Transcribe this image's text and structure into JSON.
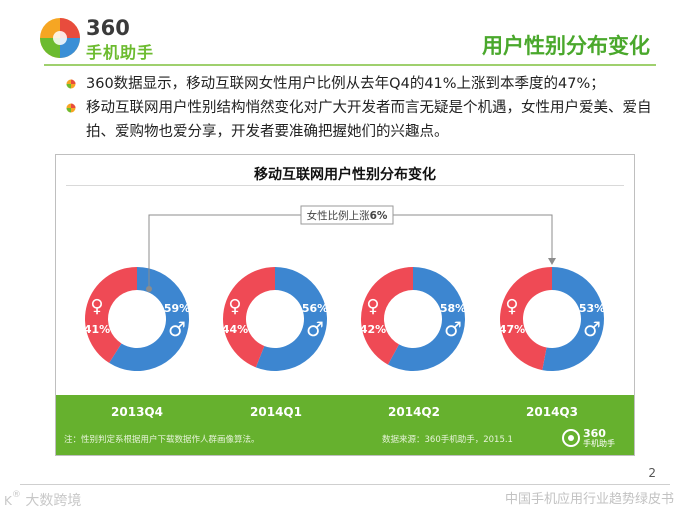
{
  "brand": {
    "number": "360",
    "name": "手机助手"
  },
  "page_title": "用户性别分布变化",
  "bullets": [
    "360数据显示，移动互联网女性用户比例从去年Q4的41%上涨到本季度的47%；",
    "移动互联网用户性别结构悄然变化对广大开发者而言无疑是个机遇，女性用户爱美、爱自拍、爱购物也爱分享，开发者要准确把握她们的兴趣点。"
  ],
  "chart_data": {
    "type": "pie",
    "title": "移动互联网用户性别分布变化",
    "annotation": {
      "text_prefix": "女性比例上涨",
      "text_value": "6%"
    },
    "categories": [
      "2013Q4",
      "2014Q1",
      "2014Q2",
      "2014Q3"
    ],
    "series": [
      {
        "name": "male",
        "symbol": "♂",
        "color": "#3d86d0",
        "values": [
          59,
          56,
          58,
          53
        ],
        "labels": [
          "59%",
          "56%",
          "58%",
          "53%"
        ]
      },
      {
        "name": "female",
        "symbol": "♀",
        "color": "#ef4a55",
        "values": [
          41,
          44,
          42,
          47
        ],
        "labels": [
          "41%",
          "44%",
          "42%",
          "47%"
        ]
      }
    ],
    "note": "注：性别判定系根据用户下载数据作人群画像算法。",
    "source": "数据来源：360手机助手，2015.1"
  },
  "colors": {
    "accent_green": "#4aa82c",
    "band_green": "#66b12e",
    "male_blue": "#3d86d0",
    "female_red": "#ef4a55"
  },
  "page_number": "2",
  "footer_text": "中国手机应用行业趋势绿皮书",
  "watermark_text": "大数跨境"
}
